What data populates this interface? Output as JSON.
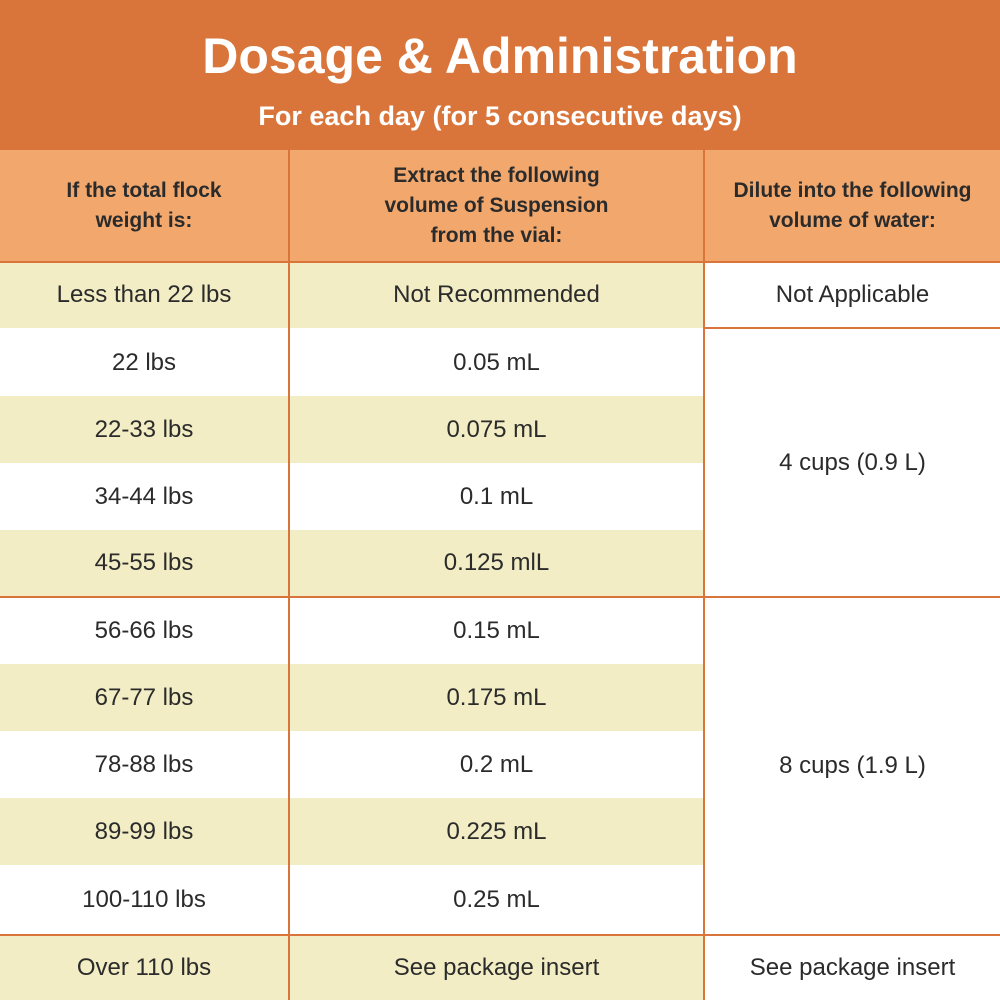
{
  "header": {
    "title": "Dosage & Administration",
    "subtitle": "For each day (for 5 consecutive days)"
  },
  "columns": {
    "weight": "If the total flock weight is:",
    "volume": "Extract the following volume of Suspension from the vial:",
    "water": "Dilute into the following volume of water:"
  },
  "rows": [
    {
      "weight": "Less than 22 lbs",
      "volume": "Not Recommended",
      "water": "Not Applicable"
    },
    {
      "weight": "22 lbs",
      "volume": "0.05 mL"
    },
    {
      "weight": "22-33 lbs",
      "volume": "0.075 mL"
    },
    {
      "weight": "34-44 lbs",
      "volume": "0.1 mL"
    },
    {
      "weight": "45-55 lbs",
      "volume": "0.125 mlL"
    },
    {
      "weight": "56-66 lbs",
      "volume": "0.15 mL"
    },
    {
      "weight": "67-77 lbs",
      "volume": "0.175 mL"
    },
    {
      "weight": "78-88 lbs",
      "volume": "0.2 mL"
    },
    {
      "weight": "89-99 lbs",
      "volume": "0.225 mL"
    },
    {
      "weight": "100-110 lbs",
      "volume": "0.25 mL"
    },
    {
      "weight": "Over 110 lbs",
      "volume": "See package insert",
      "water": "See package insert"
    }
  ],
  "water_groups": {
    "group_small": "4 cups (0.9 L)",
    "group_large": "8 cups (1.9 L)"
  },
  "colors": {
    "banner": "#d9753a",
    "header_row": "#f2a86d",
    "shaded_row": "#f2edc4",
    "grid_line": "#d9753a"
  }
}
